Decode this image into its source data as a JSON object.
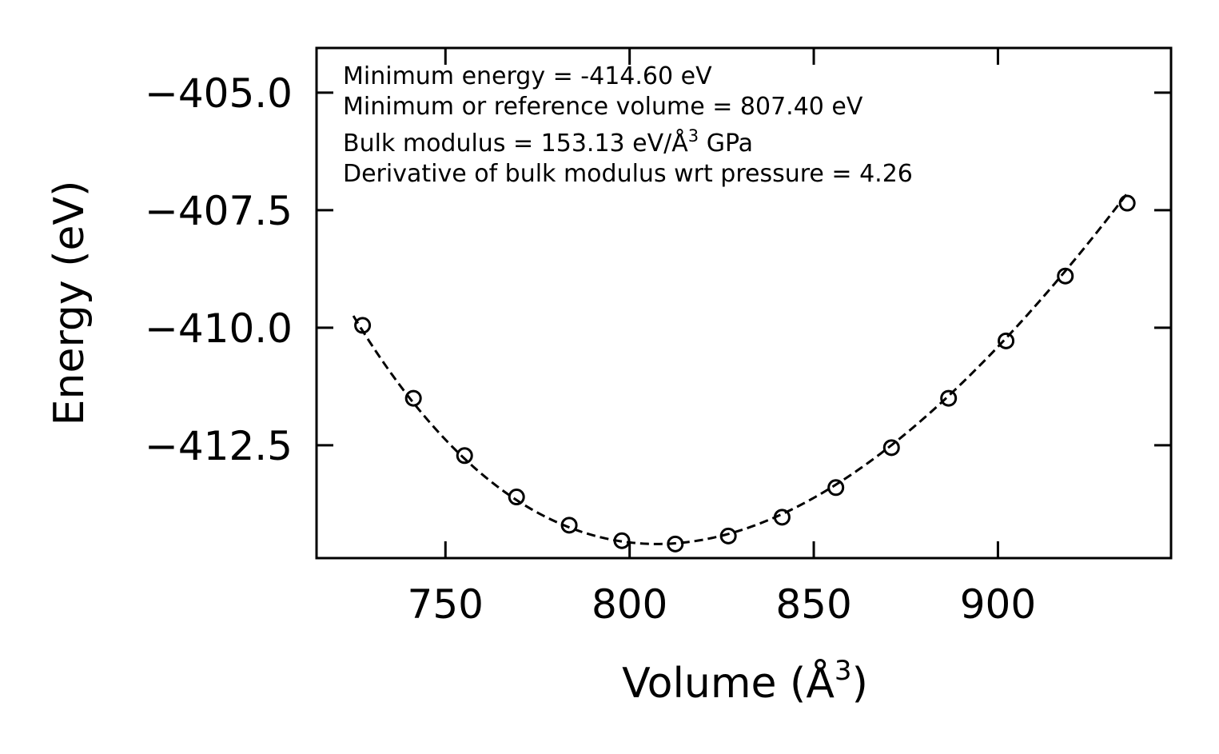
{
  "chart_data": {
    "type": "scatter",
    "title": "",
    "xlabel": "Volume (Å",
    "xlabel_sup": "3",
    "xlabel_end": ")",
    "ylabel": "Energy (eV)",
    "xlim": [
      715,
      947
    ],
    "ylim": [
      -414.9,
      -404.05
    ],
    "x_ticks": [
      750,
      800,
      850,
      900
    ],
    "x_tick_labels": [
      "750",
      "800",
      "850",
      "900"
    ],
    "y_ticks": [
      -405.0,
      -407.5,
      -410.0,
      -412.5
    ],
    "y_tick_labels": [
      "−405.0",
      "−407.5",
      "−410.0",
      "−412.5"
    ],
    "grid": false,
    "series": [
      {
        "name": "data",
        "style": "open-circle",
        "color": "#000000",
        "x": [
          727.5,
          741.3,
          755.2,
          769.3,
          783.6,
          797.9,
          812.4,
          826.8,
          841.4,
          856.0,
          871.1,
          886.6,
          902.2,
          918.3,
          935.1
        ],
        "y": [
          -409.95,
          -411.5,
          -412.72,
          -413.6,
          -414.2,
          -414.53,
          -414.6,
          -414.43,
          -414.03,
          -413.4,
          -412.55,
          -411.5,
          -410.28,
          -408.9,
          -407.35
        ]
      },
      {
        "name": "fit",
        "style": "dashed-line",
        "color": "#000000",
        "minimum_energy": -414.6,
        "minimum_volume": 807.4,
        "bulk_modulus": 153.13,
        "bulk_modulus_derivative": 4.26,
        "x_range": [
          725.0,
          935.5
        ]
      }
    ],
    "annotations": [
      {
        "text": "Minimum energy = -414.60 eV"
      },
      {
        "text": "Minimum or reference volume = 807.40 eV"
      },
      {
        "text": "Bulk modulus = 153.13 eV/Å",
        "sup": "3",
        "after": " GPa"
      },
      {
        "text": "Derivative of bulk modulus wrt pressure = 4.26"
      }
    ]
  }
}
